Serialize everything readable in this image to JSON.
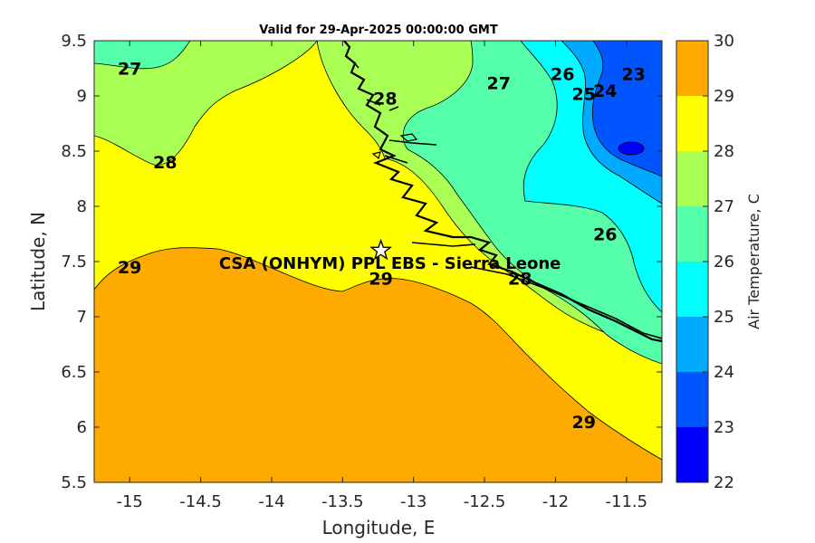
{
  "map": {
    "title": "Valid for 29-Apr-2025 00:00:00 GMT",
    "xlabel": "Longitude, E",
    "ylabel": "Latitude, N",
    "x_ticks": [
      "-15",
      "-14.5",
      "-14",
      "-13.5",
      "-13",
      "-12.5",
      "-12",
      "-11.5"
    ],
    "y_ticks": [
      "9.5",
      "9",
      "8.5",
      "8",
      "7.5",
      "7",
      "6.5",
      "6",
      "5.5"
    ],
    "xlim": [
      -15.25,
      -11.25
    ],
    "ylim": [
      5.5,
      9.5
    ]
  },
  "colorbar": {
    "label": "Air Temperature, C",
    "ticks": [
      "30",
      "29",
      "28",
      "27",
      "26",
      "25",
      "24",
      "23",
      "22"
    ],
    "range": [
      22,
      30
    ],
    "bands": [
      {
        "from": 22,
        "to": 23,
        "color": "#0000ff"
      },
      {
        "from": 23,
        "to": 24,
        "color": "#0055ff"
      },
      {
        "from": 24,
        "to": 25,
        "color": "#00aaff"
      },
      {
        "from": 25,
        "to": 26,
        "color": "#00ffff"
      },
      {
        "from": 26,
        "to": 27,
        "color": "#55ffaa"
      },
      {
        "from": 27,
        "to": 28,
        "color": "#aaff55"
      },
      {
        "from": 28,
        "to": 29,
        "color": "#ffff00"
      },
      {
        "from": 29,
        "to": 30,
        "color": "#ffaa00"
      }
    ],
    "top_color": "#ff5500"
  },
  "station": {
    "label": "CSA (ONHYM) PPL EBS  - Sierra Leone",
    "lon": -13.23,
    "lat": 7.6,
    "marker": "star"
  },
  "contour_labels": [
    {
      "text": "27",
      "lon": -15.0,
      "lat": 9.25
    },
    {
      "text": "27",
      "lon": -12.4,
      "lat": 9.12
    },
    {
      "text": "26",
      "lon": -11.95,
      "lat": 9.2
    },
    {
      "text": "25",
      "lon": -11.8,
      "lat": 9.02
    },
    {
      "text": "24",
      "lon": -11.65,
      "lat": 9.05
    },
    {
      "text": "23",
      "lon": -11.45,
      "lat": 9.2
    },
    {
      "text": "28",
      "lon": -14.75,
      "lat": 8.4
    },
    {
      "text": "28",
      "lon": -13.2,
      "lat": 8.98
    },
    {
      "text": "29",
      "lon": -15.0,
      "lat": 7.45
    },
    {
      "text": "29",
      "lon": -13.23,
      "lat": 7.35
    },
    {
      "text": "28",
      "lon": -12.25,
      "lat": 7.35
    },
    {
      "text": "26",
      "lon": -11.65,
      "lat": 7.75
    },
    {
      "text": "29",
      "lon": -11.8,
      "lat": 6.05
    }
  ]
}
